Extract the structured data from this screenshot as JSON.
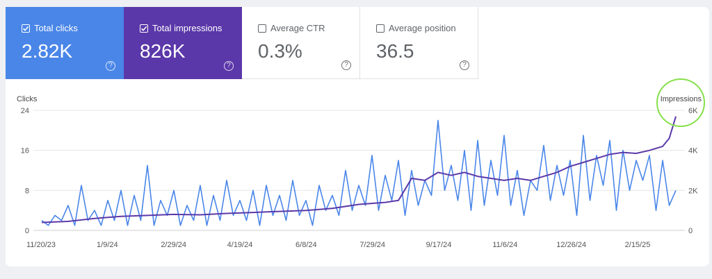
{
  "cards": [
    {
      "label": "Total clicks",
      "value": "2.82K",
      "checked": true,
      "color": "#4a86e8"
    },
    {
      "label": "Total impressions",
      "value": "826K",
      "checked": true,
      "color": "#5b38a9"
    },
    {
      "label": "Average CTR",
      "value": "0.3%",
      "checked": false
    },
    {
      "label": "Average position",
      "value": "36.5",
      "checked": false
    }
  ],
  "help_glyph": "?",
  "annotation": {
    "color": "#86e04a",
    "target": "Impressions axis label"
  },
  "chart_data": {
    "type": "line",
    "y_left": {
      "label": "Clicks",
      "ticks": [
        "0",
        "8",
        "16",
        "24"
      ],
      "range": [
        0,
        24
      ]
    },
    "y_right": {
      "label": "Impressions",
      "ticks": [
        "0",
        "2K",
        "4K",
        "6K"
      ],
      "range": [
        0,
        6000
      ]
    },
    "x_ticks": [
      "11/20/23",
      "1/9/24",
      "2/29/24",
      "4/19/24",
      "6/8/24",
      "7/29/24",
      "9/17/24",
      "11/6/24",
      "12/26/24",
      "2/15/25"
    ],
    "grid": true,
    "series": [
      {
        "name": "Clicks",
        "color": "#4a86e8",
        "axis": "left",
        "points": [
          [
            0,
            2
          ],
          [
            5,
            1
          ],
          [
            10,
            3
          ],
          [
            15,
            2
          ],
          [
            20,
            5
          ],
          [
            25,
            1
          ],
          [
            30,
            9
          ],
          [
            35,
            2
          ],
          [
            40,
            4
          ],
          [
            45,
            1
          ],
          [
            50,
            6
          ],
          [
            55,
            2
          ],
          [
            60,
            8
          ],
          [
            65,
            1
          ],
          [
            70,
            7
          ],
          [
            75,
            2
          ],
          [
            80,
            13
          ],
          [
            85,
            1
          ],
          [
            90,
            6
          ],
          [
            95,
            3
          ],
          [
            100,
            8
          ],
          [
            105,
            1
          ],
          [
            110,
            5
          ],
          [
            115,
            2
          ],
          [
            120,
            9
          ],
          [
            125,
            1
          ],
          [
            130,
            7
          ],
          [
            135,
            2
          ],
          [
            140,
            10
          ],
          [
            145,
            3
          ],
          [
            150,
            6
          ],
          [
            155,
            2
          ],
          [
            160,
            8
          ],
          [
            165,
            1
          ],
          [
            170,
            9
          ],
          [
            175,
            3
          ],
          [
            180,
            7
          ],
          [
            185,
            2
          ],
          [
            190,
            10
          ],
          [
            195,
            3
          ],
          [
            200,
            6
          ],
          [
            205,
            1
          ],
          [
            210,
            9
          ],
          [
            215,
            4
          ],
          [
            220,
            7
          ],
          [
            225,
            3
          ],
          [
            230,
            12
          ],
          [
            235,
            4
          ],
          [
            240,
            9
          ],
          [
            245,
            5
          ],
          [
            250,
            15
          ],
          [
            255,
            4
          ],
          [
            260,
            11
          ],
          [
            265,
            6
          ],
          [
            270,
            14
          ],
          [
            275,
            3
          ],
          [
            280,
            12
          ],
          [
            285,
            5
          ],
          [
            290,
            10
          ],
          [
            295,
            7
          ],
          [
            300,
            22
          ],
          [
            305,
            8
          ],
          [
            310,
            13
          ],
          [
            315,
            6
          ],
          [
            320,
            16
          ],
          [
            325,
            4
          ],
          [
            330,
            18
          ],
          [
            335,
            5
          ],
          [
            340,
            14
          ],
          [
            345,
            7
          ],
          [
            350,
            19
          ],
          [
            355,
            5
          ],
          [
            360,
            12
          ],
          [
            365,
            3
          ],
          [
            370,
            10
          ],
          [
            375,
            8
          ],
          [
            380,
            17
          ],
          [
            385,
            6
          ],
          [
            390,
            13
          ],
          [
            395,
            7
          ],
          [
            400,
            14
          ],
          [
            405,
            3
          ],
          [
            410,
            19
          ],
          [
            415,
            6
          ],
          [
            420,
            15
          ],
          [
            425,
            9
          ],
          [
            430,
            18
          ],
          [
            435,
            4
          ],
          [
            440,
            16
          ],
          [
            445,
            8
          ],
          [
            450,
            14
          ],
          [
            455,
            10
          ],
          [
            460,
            15
          ],
          [
            465,
            4
          ],
          [
            470,
            14
          ],
          [
            475,
            5
          ],
          [
            480,
            8
          ]
        ]
      },
      {
        "name": "Impressions",
        "color": "#5b38a9",
        "axis": "right",
        "points": [
          [
            0,
            400
          ],
          [
            20,
            450
          ],
          [
            40,
            600
          ],
          [
            60,
            700
          ],
          [
            80,
            750
          ],
          [
            100,
            800
          ],
          [
            120,
            780
          ],
          [
            140,
            850
          ],
          [
            160,
            900
          ],
          [
            180,
            950
          ],
          [
            200,
            1000
          ],
          [
            220,
            1100
          ],
          [
            240,
            1300
          ],
          [
            260,
            1400
          ],
          [
            270,
            1500
          ],
          [
            280,
            2600
          ],
          [
            290,
            2500
          ],
          [
            300,
            2900
          ],
          [
            310,
            2750
          ],
          [
            320,
            2900
          ],
          [
            330,
            2700
          ],
          [
            340,
            2600
          ],
          [
            350,
            2500
          ],
          [
            360,
            2600
          ],
          [
            370,
            2500
          ],
          [
            380,
            2700
          ],
          [
            390,
            2900
          ],
          [
            400,
            3200
          ],
          [
            410,
            3400
          ],
          [
            420,
            3600
          ],
          [
            430,
            3800
          ],
          [
            440,
            3900
          ],
          [
            450,
            3850
          ],
          [
            460,
            4000
          ],
          [
            470,
            4200
          ],
          [
            475,
            4600
          ],
          [
            480,
            5700
          ]
        ]
      }
    ]
  }
}
